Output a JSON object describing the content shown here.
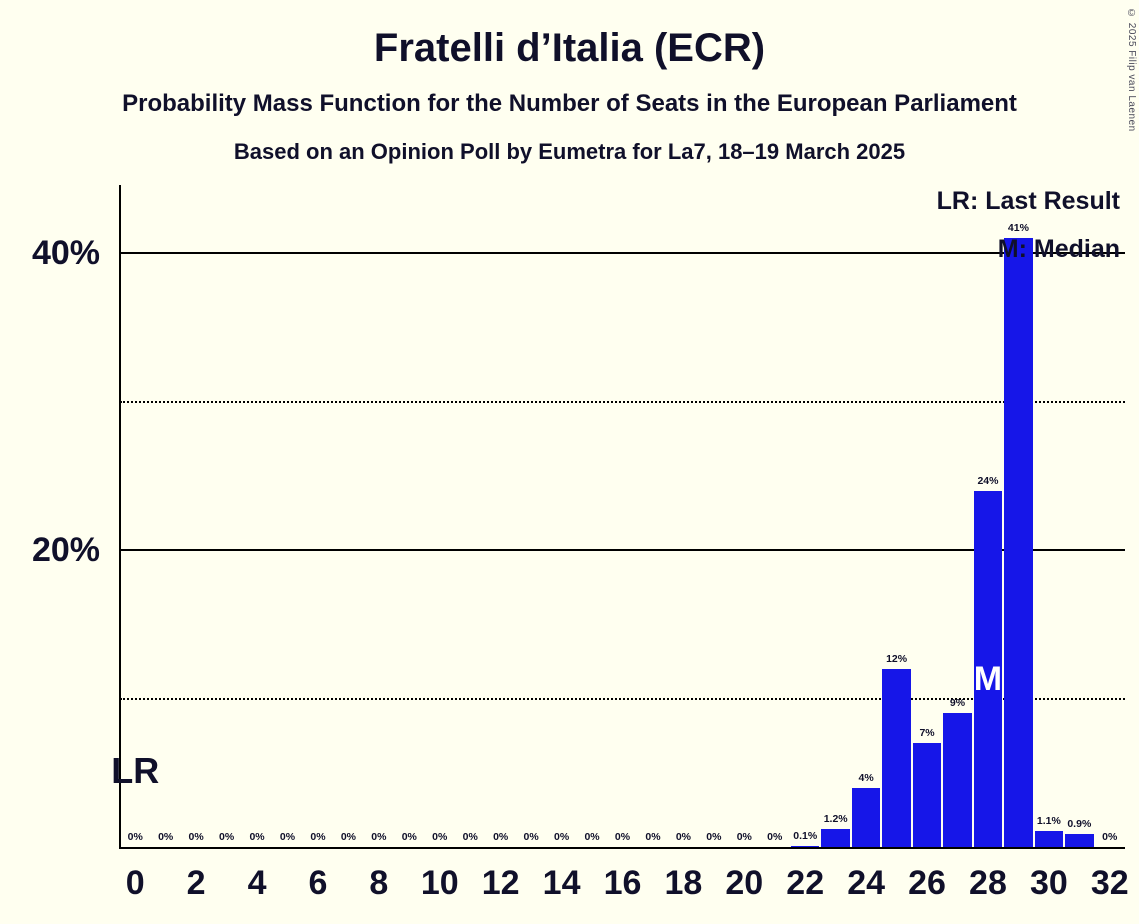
{
  "chart_data": {
    "type": "bar",
    "title": "Fratelli d’Italia (ECR)",
    "subtitle": "Probability Mass Function for the Number of Seats in the European Parliament",
    "source_line": "Based on an Opinion Poll by Eumetra for La7, 18–19 March 2025",
    "copyright": "© 2025 Filip van Laenen",
    "legend": {
      "lr": "LR: Last Result",
      "m": "M: Median"
    },
    "x": [
      0,
      1,
      2,
      3,
      4,
      5,
      6,
      7,
      8,
      9,
      10,
      11,
      12,
      13,
      14,
      15,
      16,
      17,
      18,
      19,
      20,
      21,
      22,
      23,
      24,
      25,
      26,
      27,
      28,
      29,
      30,
      31,
      32
    ],
    "values": [
      0,
      0,
      0,
      0,
      0,
      0,
      0,
      0,
      0,
      0,
      0,
      0,
      0,
      0,
      0,
      0,
      0,
      0,
      0,
      0,
      0,
      0,
      0.1,
      1.2,
      4,
      12,
      7,
      9,
      24,
      41,
      1.1,
      0.9,
      0
    ],
    "value_labels": [
      "0%",
      "0%",
      "0%",
      "0%",
      "0%",
      "0%",
      "0%",
      "0%",
      "0%",
      "0%",
      "0%",
      "0%",
      "0%",
      "0%",
      "0%",
      "0%",
      "0%",
      "0%",
      "0%",
      "0%",
      "0%",
      "0%",
      "0.1%",
      "1.2%",
      "4%",
      "12%",
      "7%",
      "9%",
      "24%",
      "41%",
      "1.1%",
      "0.9%",
      "0%"
    ],
    "x_ticks": [
      0,
      2,
      4,
      6,
      8,
      10,
      12,
      14,
      16,
      18,
      20,
      22,
      24,
      26,
      28,
      30,
      32
    ],
    "y_gridlines": [
      {
        "pct": 40,
        "label": "40%",
        "style": "solid"
      },
      {
        "pct": 30,
        "label": "",
        "style": "dotted"
      },
      {
        "pct": 20,
        "label": "20%",
        "style": "solid"
      },
      {
        "pct": 10,
        "label": "",
        "style": "dotted"
      }
    ],
    "ylim": [
      0,
      44.5
    ],
    "legend_position": "top-right",
    "markers": {
      "last_result": {
        "label": "LR",
        "seat": 0
      },
      "median": {
        "label": "M",
        "seat": 28
      }
    },
    "colors": {
      "bar": "#1616E8",
      "background": "#FFFFF0",
      "text": "#10102A",
      "line": "#000000",
      "median_letter": "#FFFFFF"
    }
  }
}
